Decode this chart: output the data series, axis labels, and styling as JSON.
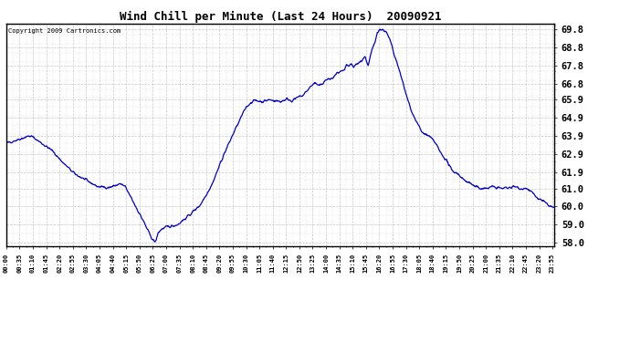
{
  "title": "Wind Chill per Minute (Last 24 Hours)  20090921",
  "copyright": "Copyright 2009 Cartronics.com",
  "line_color": "#0000CC",
  "bg_color": "#ffffff",
  "grid_color": "#bbbbbb",
  "yticks": [
    58.0,
    59.0,
    60.0,
    61.0,
    61.9,
    62.9,
    63.9,
    64.9,
    65.9,
    66.8,
    67.8,
    68.8,
    69.8
  ],
  "x_labels": [
    "00:00",
    "00:35",
    "01:10",
    "01:45",
    "02:20",
    "02:55",
    "03:30",
    "04:05",
    "04:40",
    "05:15",
    "05:50",
    "06:25",
    "07:00",
    "07:35",
    "08:10",
    "08:45",
    "09:20",
    "09:55",
    "10:30",
    "11:05",
    "11:40",
    "12:15",
    "12:50",
    "13:25",
    "14:00",
    "14:35",
    "15:10",
    "15:45",
    "16:20",
    "16:55",
    "17:30",
    "18:05",
    "18:40",
    "19:15",
    "19:50",
    "20:25",
    "21:00",
    "21:35",
    "22:10",
    "22:45",
    "23:20",
    "23:55"
  ],
  "control_points": [
    [
      0.0,
      63.5
    ],
    [
      0.5,
      63.7
    ],
    [
      1.0,
      63.9
    ],
    [
      1.15,
      63.85
    ],
    [
      2.0,
      63.1
    ],
    [
      2.5,
      62.4
    ],
    [
      3.0,
      61.8
    ],
    [
      3.5,
      61.45
    ],
    [
      4.0,
      61.1
    ],
    [
      4.5,
      61.05
    ],
    [
      5.0,
      61.25
    ],
    [
      5.2,
      61.1
    ],
    [
      5.5,
      60.4
    ],
    [
      6.0,
      59.2
    ],
    [
      6.3,
      58.4
    ],
    [
      6.48,
      58.05
    ],
    [
      6.55,
      58.08
    ],
    [
      6.65,
      58.55
    ],
    [
      6.8,
      58.75
    ],
    [
      7.0,
      58.85
    ],
    [
      7.2,
      58.9
    ],
    [
      7.5,
      59.0
    ],
    [
      7.8,
      59.3
    ],
    [
      8.0,
      59.5
    ],
    [
      8.5,
      60.1
    ],
    [
      9.0,
      61.2
    ],
    [
      9.5,
      62.8
    ],
    [
      10.0,
      64.2
    ],
    [
      10.5,
      65.5
    ],
    [
      10.8,
      65.85
    ],
    [
      11.0,
      65.85
    ],
    [
      11.2,
      65.8
    ],
    [
      11.5,
      65.9
    ],
    [
      11.8,
      65.85
    ],
    [
      12.0,
      65.8
    ],
    [
      12.3,
      65.95
    ],
    [
      12.5,
      65.85
    ],
    [
      12.8,
      66.05
    ],
    [
      13.0,
      66.15
    ],
    [
      13.3,
      66.6
    ],
    [
      13.5,
      66.85
    ],
    [
      13.7,
      66.65
    ],
    [
      14.0,
      67.0
    ],
    [
      14.3,
      67.1
    ],
    [
      14.5,
      67.4
    ],
    [
      14.8,
      67.5
    ],
    [
      14.9,
      67.8
    ],
    [
      15.0,
      67.75
    ],
    [
      15.1,
      67.9
    ],
    [
      15.2,
      67.65
    ],
    [
      15.3,
      67.85
    ],
    [
      15.5,
      68.0
    ],
    [
      15.7,
      68.3
    ],
    [
      15.85,
      67.8
    ],
    [
      16.0,
      68.6
    ],
    [
      16.15,
      69.1
    ],
    [
      16.25,
      69.7
    ],
    [
      16.35,
      69.8
    ],
    [
      16.45,
      69.75
    ],
    [
      16.5,
      69.8
    ],
    [
      16.55,
      69.75
    ],
    [
      16.65,
      69.6
    ],
    [
      16.8,
      69.2
    ],
    [
      16.9,
      68.8
    ],
    [
      17.0,
      68.3
    ],
    [
      17.2,
      67.6
    ],
    [
      17.5,
      66.2
    ],
    [
      17.8,
      65.1
    ],
    [
      18.0,
      64.6
    ],
    [
      18.2,
      64.1
    ],
    [
      18.5,
      63.9
    ],
    [
      18.8,
      63.5
    ],
    [
      19.0,
      63.0
    ],
    [
      19.3,
      62.5
    ],
    [
      19.5,
      62.0
    ],
    [
      19.8,
      61.8
    ],
    [
      20.0,
      61.5
    ],
    [
      20.3,
      61.3
    ],
    [
      20.5,
      61.1
    ],
    [
      20.8,
      61.0
    ],
    [
      21.0,
      61.0
    ],
    [
      21.3,
      61.1
    ],
    [
      21.5,
      61.05
    ],
    [
      21.7,
      61.0
    ],
    [
      22.0,
      61.05
    ],
    [
      22.3,
      61.1
    ],
    [
      22.5,
      61.0
    ],
    [
      22.8,
      61.0
    ],
    [
      23.0,
      60.8
    ],
    [
      23.2,
      60.5
    ],
    [
      23.5,
      60.3
    ],
    [
      23.7,
      60.1
    ],
    [
      24.0,
      59.9
    ]
  ]
}
